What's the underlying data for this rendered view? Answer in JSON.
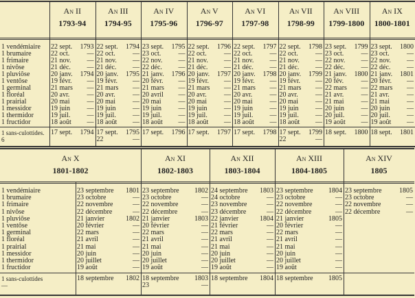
{
  "top": {
    "months": [
      "1 vendémiaire",
      "1 brumaire",
      "1 frimaire",
      "1 nivôse",
      "1 pluviôse",
      "1 ventôse",
      "1 germinal",
      "1 floréal",
      "1 prairial",
      "1 messidor",
      "1 thermidor",
      "1 fructidor"
    ],
    "sans": [
      "1 sans-culottides.",
      "6"
    ],
    "years": [
      {
        "an": "An II",
        "span": "1793-94",
        "dates": [
          [
            "22 sept.",
            "1793"
          ],
          [
            "22 oct.",
            "—"
          ],
          [
            "21 nov.",
            "—"
          ],
          [
            "21 déc.",
            "—"
          ],
          [
            "20 janv.",
            "1794"
          ],
          [
            "19 févr.",
            "—"
          ],
          [
            "21 mars",
            "—"
          ],
          [
            "20 avr.",
            "—"
          ],
          [
            "20 mai",
            "—"
          ],
          [
            "19 juin",
            "—"
          ],
          [
            "19 juil.",
            "—"
          ],
          [
            "18 août",
            "—"
          ]
        ],
        "extra": [
          [
            "17 sept.",
            "1794"
          ]
        ]
      },
      {
        "an": "An III",
        "span": "1794-95",
        "dates": [
          [
            "22 sept.",
            "1794"
          ],
          [
            "22 oct.",
            "—"
          ],
          [
            "21 nov.",
            "—"
          ],
          [
            "21 déc.",
            "—"
          ],
          [
            "20 janv.",
            "1795"
          ],
          [
            "19 févr.",
            "—"
          ],
          [
            "21 mars",
            "—"
          ],
          [
            "20 avr.",
            "—"
          ],
          [
            "20 mai",
            "—"
          ],
          [
            "19 juin",
            "—"
          ],
          [
            "19 juil.",
            "—"
          ],
          [
            "18 août",
            "—"
          ]
        ],
        "extra": [
          [
            "17 sept.",
            "1795"
          ],
          [
            "22",
            "—"
          ]
        ]
      },
      {
        "an": "An IV",
        "span": "1795-96",
        "dates": [
          [
            "23 sept.",
            "1795"
          ],
          [
            "23 oct.",
            "—"
          ],
          [
            "22 nov.",
            "—"
          ],
          [
            "22 déc.",
            "—"
          ],
          [
            "21 janv.",
            "1796"
          ],
          [
            "20 févr.",
            "—"
          ],
          [
            "21 mars",
            "—"
          ],
          [
            "20 avril",
            "—"
          ],
          [
            "20 mai",
            "—"
          ],
          [
            "19 juin",
            "—"
          ],
          [
            "19 juil.",
            "—"
          ],
          [
            "18 août",
            "—"
          ]
        ],
        "extra": [
          [
            "17 sept.",
            "1796"
          ]
        ]
      },
      {
        "an": "An V",
        "span": "1796-97",
        "dates": [
          [
            "22 sept.",
            "1796"
          ],
          [
            "22 oct.",
            "—"
          ],
          [
            "21 nov.",
            "—"
          ],
          [
            "21 déc.",
            "—"
          ],
          [
            "20 janv.",
            "1797"
          ],
          [
            "19 févr.",
            "—"
          ],
          [
            "21 mars",
            "—"
          ],
          [
            "20 avr.",
            "—"
          ],
          [
            "20 mai",
            "—"
          ],
          [
            "19 juin",
            "—"
          ],
          [
            "19 juil.",
            "—"
          ],
          [
            "18 août",
            "—"
          ]
        ],
        "extra": [
          [
            "17 sept.",
            "1797"
          ]
        ]
      },
      {
        "an": "An VI",
        "span": "1797-98",
        "dates": [
          [
            "22 sept.",
            "1797"
          ],
          [
            "22 oct.",
            "—"
          ],
          [
            "21 nov.",
            "—"
          ],
          [
            "21 déc.",
            "—"
          ],
          [
            "20 janv.",
            "1798"
          ],
          [
            "19 févr.",
            "—"
          ],
          [
            "21 mars",
            "—"
          ],
          [
            "20 avr.",
            "—"
          ],
          [
            "20 mai",
            "—"
          ],
          [
            "19 juin",
            "—"
          ],
          [
            "19 juil.",
            "—"
          ],
          [
            "18 août",
            "—"
          ]
        ],
        "extra": [
          [
            "17 sept.",
            "1798"
          ]
        ]
      },
      {
        "an": "An VII",
        "span": "1798-99",
        "dates": [
          [
            "22 sept.",
            "1798"
          ],
          [
            "22 oct.",
            "—"
          ],
          [
            "21 nov.",
            "—"
          ],
          [
            "21 déc.",
            "—"
          ],
          [
            "20 janv.",
            "1799"
          ],
          [
            "19 févr.",
            "—"
          ],
          [
            "21 mars",
            "—"
          ],
          [
            "20 avr.",
            "—"
          ],
          [
            "20 mai",
            "—"
          ],
          [
            "19 juin",
            "—"
          ],
          [
            "19 juil.",
            "—"
          ],
          [
            "18 août",
            "—"
          ]
        ],
        "extra": [
          [
            "17 sept.",
            "1799"
          ],
          [
            "22",
            "—"
          ]
        ]
      },
      {
        "an": "An VIII",
        "span": "1799-1800",
        "dates": [
          [
            "23 sept.",
            "1799"
          ],
          [
            "23 oct.",
            "—"
          ],
          [
            "22 nov.",
            "—"
          ],
          [
            "22 déc.",
            "—"
          ],
          [
            "21 janv.",
            "1800"
          ],
          [
            "20 fév.",
            "—"
          ],
          [
            "22 mars",
            "—"
          ],
          [
            "21 avr.",
            "—"
          ],
          [
            "21 mai",
            "—"
          ],
          [
            "20 juin",
            "—"
          ],
          [
            "20 juil.",
            "—"
          ],
          [
            "19 août",
            "—"
          ]
        ],
        "extra": [
          [
            "18 sept.",
            "1800"
          ]
        ]
      },
      {
        "an": "An IX",
        "span": "1800-1801",
        "dates": [
          [
            "23 sept.",
            "1800"
          ],
          [
            "23 oct.",
            "—"
          ],
          [
            "22 nov.",
            "—"
          ],
          [
            "22 déc.",
            "—"
          ],
          [
            "21 janv.",
            "1801"
          ],
          [
            "20 févr.",
            "—"
          ],
          [
            "22 mars",
            "—"
          ],
          [
            "21 avr.",
            "—"
          ],
          [
            "21 mai",
            "—"
          ],
          [
            "20 juin",
            "—"
          ],
          [
            "20 juil.",
            "—"
          ],
          [
            "19 août",
            "—"
          ]
        ],
        "extra": [
          [
            "18 sept.",
            "1801"
          ]
        ]
      }
    ]
  },
  "bottom": {
    "months": [
      "1 vendémiaire",
      "1 brumaire",
      "1 frimaire",
      "1 nivôse",
      "1 pluviôse",
      "1 ventôse",
      "1 germinal",
      "1 floréal",
      "1 prairial",
      "1 messidor",
      "1 thermidor",
      "1 fructidor"
    ],
    "sans": [
      "1 sans-culottides",
      "—"
    ],
    "years": [
      {
        "an": "An X",
        "span": "1801-1802",
        "dates": [
          [
            "23 septembre",
            "1801"
          ],
          [
            "23 octobre",
            "—"
          ],
          [
            "22 novembre",
            "—"
          ],
          [
            "22 décembre",
            "—"
          ],
          [
            "21 janvier",
            "1802"
          ],
          [
            "20 février",
            "—"
          ],
          [
            "22 mars",
            "—"
          ],
          [
            "21 avril",
            "—"
          ],
          [
            "21 mai",
            "—"
          ],
          [
            "20 juin",
            "—"
          ],
          [
            "20 juillet",
            "—"
          ],
          [
            "19 août",
            "—"
          ]
        ],
        "extra": [
          [
            "18 septembre",
            "1802"
          ]
        ]
      },
      {
        "an": "An XI",
        "span": "1802-1803",
        "dates": [
          [
            "23 septembre",
            "1802"
          ],
          [
            "23 octobre",
            "—"
          ],
          [
            "22 novembre",
            "—"
          ],
          [
            "22 décembre",
            "—"
          ],
          [
            "21 janvier",
            "1803"
          ],
          [
            "20 février",
            "—"
          ],
          [
            "22 mars",
            "—"
          ],
          [
            "21 avril",
            "—"
          ],
          [
            "21 mai",
            "—"
          ],
          [
            "20 juin",
            "—"
          ],
          [
            "20 juillet",
            "—"
          ],
          [
            "19 août",
            "—"
          ]
        ],
        "extra": [
          [
            "18 septembre",
            "1803"
          ],
          [
            "23",
            "—"
          ]
        ]
      },
      {
        "an": "An XII",
        "span": "1803-1804",
        "dates": [
          [
            "24 septembre",
            "1803"
          ],
          [
            "24 octobre",
            "—"
          ],
          [
            "23 novembre",
            "—"
          ],
          [
            "23 décembre",
            "—"
          ],
          [
            "22 janvier",
            "1804"
          ],
          [
            "21 février",
            "—"
          ],
          [
            "22 mars",
            "—"
          ],
          [
            "21 avril",
            "—"
          ],
          [
            "21 mai",
            "—"
          ],
          [
            "20 juin",
            "—"
          ],
          [
            "20 juillet",
            "—"
          ],
          [
            "19 août",
            "—"
          ]
        ],
        "extra": [
          [
            "18 septembre",
            "1804"
          ]
        ]
      },
      {
        "an": "An XIII",
        "span": "1804-1805",
        "dates": [
          [
            "23 septembre",
            "1804"
          ],
          [
            "23 octobre",
            "—"
          ],
          [
            "22 novembre",
            "—"
          ],
          [
            "22 décembre",
            "—"
          ],
          [
            "21 janvier",
            "1805"
          ],
          [
            "20 février",
            "—"
          ],
          [
            "22 mars",
            "—"
          ],
          [
            "21 avril",
            "—"
          ],
          [
            "21 mai",
            "—"
          ],
          [
            "20 juin",
            "—"
          ],
          [
            "20 juillet",
            "—"
          ],
          [
            "19 août",
            "—"
          ]
        ],
        "extra": [
          [
            "18 septembre",
            "1805"
          ]
        ]
      },
      {
        "an": "An XIV",
        "span": "1805",
        "dates": [
          [
            "23 septembre",
            "1805"
          ],
          [
            "23 octobre",
            "—"
          ],
          [
            "22 novembre",
            "—"
          ],
          [
            "22 décembre",
            "—"
          ]
        ],
        "extra": []
      }
    ]
  }
}
